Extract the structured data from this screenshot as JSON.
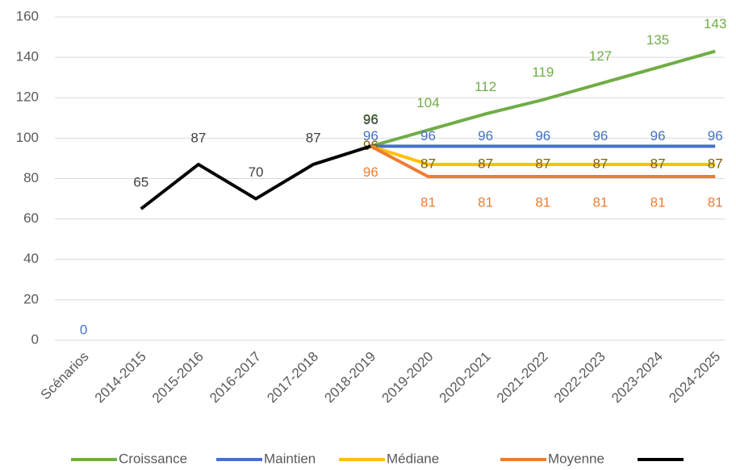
{
  "chart_data": {
    "type": "line",
    "categories": [
      "Scénarios",
      "2014-2015",
      "2015-2016",
      "2016-2017",
      "2017-2018",
      "2018-2019",
      "2019-2020",
      "2020-2021",
      "2021-2022",
      "2022-2023",
      "2023-2024",
      "2024-2025"
    ],
    "series": [
      {
        "name": "Croissance",
        "color": "#70ad47",
        "label_color": "#70ad47",
        "values": [
          null,
          null,
          null,
          null,
          null,
          96,
          104,
          112,
          119,
          127,
          135,
          143
        ]
      },
      {
        "name": "Maintien",
        "color": "#4472c4",
        "label_color": "#4472c4",
        "values": [
          0,
          null,
          null,
          null,
          null,
          96,
          96,
          96,
          96,
          96,
          96,
          96
        ]
      },
      {
        "name": "Médiane",
        "color": "#ffc000",
        "label_color": "#7f6000",
        "values": [
          null,
          null,
          null,
          null,
          null,
          96,
          87,
          87,
          87,
          87,
          87,
          87
        ]
      },
      {
        "name": "Moyenne",
        "color": "#ed7d31",
        "label_color": "#ed7d31",
        "values": [
          null,
          null,
          null,
          null,
          null,
          96,
          81,
          81,
          81,
          81,
          81,
          81
        ]
      },
      {
        "color": "#000000",
        "label_color": "#404040",
        "values": [
          null,
          65,
          87,
          70,
          87,
          96,
          null,
          null,
          null,
          null,
          null,
          null
        ]
      }
    ],
    "ylim": [
      0,
      160
    ],
    "yticks": [
      0,
      20,
      40,
      60,
      80,
      100,
      120,
      140,
      160
    ],
    "grid": true,
    "legend": "bottom"
  }
}
